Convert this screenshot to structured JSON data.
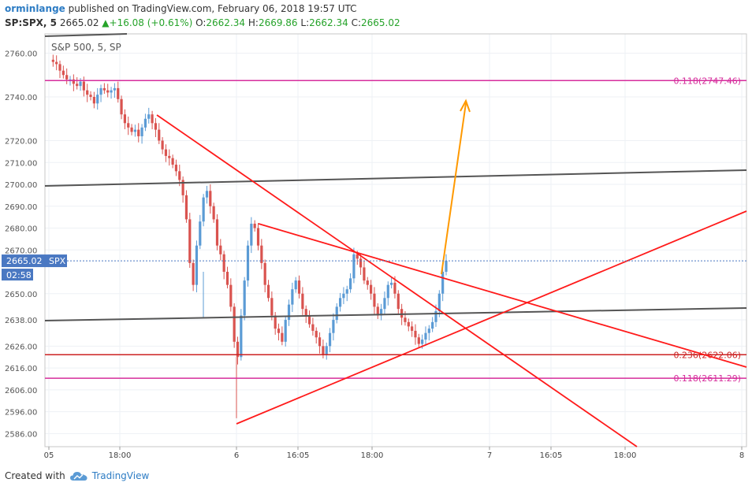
{
  "header": {
    "author": "orminlange",
    "published": "published on TradingView.com, February 06, 2018 19:57 UTC",
    "symbol": "SP:SPX, 5",
    "price": "2665.02",
    "change_arrow": "▲",
    "change": "+16.08 (+0.61%)",
    "open_label": "O:",
    "open": "2662.34",
    "high_label": "H:",
    "high": "2669.86",
    "low_label": "L:",
    "low": "2662.34",
    "close_label": "C:",
    "close": "2665.02"
  },
  "legend": "S&P 500, 5, SP",
  "footer": {
    "created_with": "Created with",
    "brand": "TradingView",
    "logo_icon": "tradingview-cloud-icon"
  },
  "colors": {
    "up": "#5b9bd5",
    "down": "#d9534f",
    "trend": "#ff1a1a",
    "fib_magenta": "#d62d9c",
    "fib_red": "#cc2222",
    "channel": "#555555",
    "target_arrow": "#ff9900",
    "price_line": "#4a78c2"
  },
  "chart_data": {
    "type": "candlestick",
    "title": "S&P 500, 5, SP",
    "y_ticks": [
      2760,
      2740,
      2720,
      2710,
      2700,
      2690,
      2680,
      2670,
      2650,
      2638,
      2626,
      2616,
      2606,
      2596,
      2586
    ],
    "y_tick_labels": [
      "2760.00",
      "2740.00",
      "2720.00",
      "2710.00",
      "2700.00",
      "2690.00",
      "2680.00",
      "2670.00",
      "2650.00",
      "2638.00",
      "2626.00",
      "2616.00",
      "2606.00",
      "2596.00",
      "2586.00"
    ],
    "x_tick_labels": [
      "05",
      "18:00",
      "6",
      "16:05",
      "18:00",
      "7",
      "16:05",
      "18:00",
      "8"
    ],
    "last_price_label": "2665.02",
    "last_price_symbol": "SPX",
    "countdown": "02:58",
    "price_path": [
      2757,
      2756,
      2755,
      2752,
      2750,
      2748,
      2748,
      2746,
      2745,
      2747,
      2743,
      2741,
      2740,
      2737,
      2741,
      2744,
      2743,
      2742,
      2743,
      2744,
      2739,
      2732,
      2728,
      2726,
      2724,
      2725,
      2722,
      2726,
      2730,
      2732,
      2728,
      2725,
      2720,
      2716,
      2713,
      2712,
      2709,
      2706,
      2702,
      2695,
      2684,
      2664,
      2654,
      2672,
      2683,
      2694,
      2697,
      2690,
      2684,
      2672,
      2668,
      2660,
      2654,
      2644,
      2628,
      2621,
      2640,
      2656,
      2672,
      2682,
      2680,
      2672,
      2664,
      2654,
      2648,
      2640,
      2634,
      2632,
      2628,
      2638,
      2645,
      2652,
      2656,
      2650,
      2643,
      2640,
      2636,
      2633,
      2630,
      2626,
      2622,
      2626,
      2632,
      2638,
      2644,
      2648,
      2650,
      2652,
      2657,
      2668,
      2666,
      2662,
      2656,
      2654,
      2650,
      2644,
      2640,
      2643,
      2648,
      2654,
      2655,
      2650,
      2643,
      2639,
      2637,
      2635,
      2633,
      2630,
      2627,
      2629,
      2632,
      2634,
      2637,
      2642,
      2650,
      2660,
      2665
    ],
    "fib_levels": [
      {
        "label": "0.118(2747.46)",
        "value": 2747.46,
        "color": "#d62d9c"
      },
      {
        "label": "0.236(2622.06)",
        "value": 2622.06,
        "color": "#cc2222"
      },
      {
        "label": "0.118(2611.29)",
        "value": 2611.29,
        "color": "#d62d9c"
      }
    ]
  }
}
